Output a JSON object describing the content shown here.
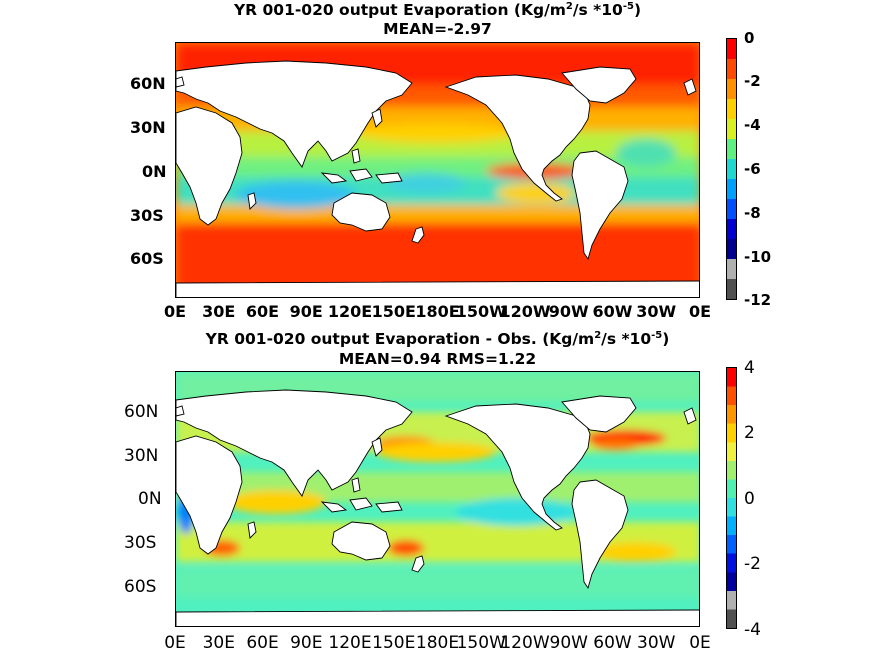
{
  "top": {
    "title_pre": "YR 001-020 output  Evaporation (Kg/m",
    "title_sup1": "2",
    "title_mid": "/s *10",
    "title_sup2": "-5",
    "title_post": ")",
    "subtitle": "MEAN=-2.97",
    "y_ticks": [
      "60N",
      "30N",
      "0N",
      "30S",
      "60S"
    ],
    "x_ticks": [
      "0E",
      "30E",
      "60E",
      "90E",
      "120E",
      "150E",
      "180E",
      "150W",
      "120W",
      "90W",
      "60W",
      "30W",
      "0E"
    ],
    "colorbar_ticks": [
      "0",
      "-2",
      "-4",
      "-6",
      "-8",
      "-10",
      "-12"
    ],
    "colorbar_colors": [
      "#ff0000",
      "#ff4a00",
      "#ff9000",
      "#ffd000",
      "#d8f020",
      "#60f080",
      "#20d8d0",
      "#00a0ff",
      "#0050ff",
      "#0000d0",
      "#000090",
      "#b0b0b0",
      "#505050"
    ]
  },
  "bottom": {
    "title_pre": "YR 001-020 output Evaporation - Obs. (Kg/m",
    "title_sup1": "2",
    "title_mid": "/s *10",
    "title_sup2": "-5",
    "title_post": ")",
    "subtitle": "MEAN=0.94   RMS=1.22",
    "y_ticks": [
      "60N",
      "30N",
      "0N",
      "30S",
      "60S"
    ],
    "x_ticks": [
      "0E",
      "30E",
      "60E",
      "90E",
      "120E",
      "150E",
      "180E",
      "150W",
      "120W",
      "90W",
      "60W",
      "30W",
      "0E"
    ],
    "colorbar_ticks": [
      "4",
      "2",
      "0",
      "-2",
      "-4"
    ],
    "colorbar_colors": [
      "#ff0000",
      "#ff5000",
      "#ff9600",
      "#ffd000",
      "#f0f040",
      "#a0f070",
      "#50f0b0",
      "#30e0e0",
      "#00b0ff",
      "#0060ff",
      "#0010e0",
      "#0000a0",
      "#b0b0b0",
      "#505050"
    ]
  },
  "colors": {
    "land": "#ffffff",
    "coast": "#000000",
    "low_evap": "#ff3000",
    "high_evap": "#30d8d0"
  }
}
